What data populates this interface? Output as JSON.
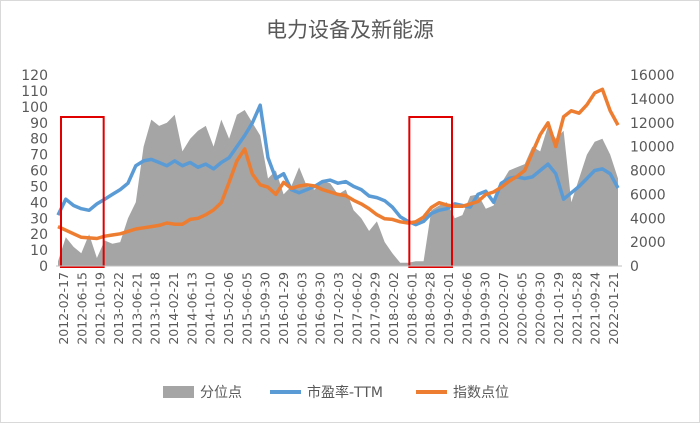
{
  "chart_data": {
    "type": "area",
    "title": "电力设备及新能源",
    "x_ticks": [
      "2012-02-17",
      "2012-06-15",
      "2012-10-19",
      "2013-02-22",
      "2013-06-21",
      "2013-10-18",
      "2014-02-21",
      "2014-06-13",
      "2014-10-10",
      "2015-02-06",
      "2015-06-05",
      "2015-09-30",
      "2016-01-29",
      "2016-06-03",
      "2016-09-30",
      "2017-02-03",
      "2017-06-02",
      "2017-09-29",
      "2018-02-02",
      "2018-06-01",
      "2018-09-28",
      "2019-02-01",
      "2019-06-06",
      "2019-09-30",
      "2020-02-07",
      "2020-06-05",
      "2020-09-30",
      "2021-01-29",
      "2021-05-28",
      "2021-09-24",
      "2022-01-21"
    ],
    "ylim_left": [
      0,
      120
    ],
    "yticks_left": [
      0,
      10,
      20,
      30,
      40,
      50,
      60,
      70,
      80,
      90,
      100,
      110,
      120
    ],
    "ylim_right": [
      0,
      16000
    ],
    "yticks_right": [
      0,
      2000,
      4000,
      6000,
      8000,
      10000,
      12000,
      14000,
      16000
    ],
    "series": [
      {
        "name": "分位点",
        "axis": "left",
        "color": "#a5a5a5",
        "values": [
          3,
          18,
          12,
          8,
          20,
          5,
          16,
          14,
          15,
          30,
          40,
          75,
          92,
          88,
          90,
          95,
          72,
          80,
          85,
          88,
          75,
          92,
          80,
          95,
          98,
          90,
          82,
          55,
          60,
          45,
          50,
          62,
          50,
          48,
          53,
          52,
          45,
          48,
          35,
          30,
          22,
          28,
          15,
          8,
          2,
          2,
          3,
          3,
          35,
          38,
          40,
          30,
          32,
          44,
          45,
          36,
          38,
          52,
          60,
          62,
          64,
          75,
          72,
          88,
          80,
          85,
          40,
          55,
          70,
          78,
          80,
          70,
          55
        ]
      },
      {
        "name": "市盈率-TTM",
        "axis": "left",
        "color": "#5b9bd5",
        "values": [
          32,
          42,
          38,
          36,
          35,
          39,
          42,
          45,
          48,
          52,
          63,
          66,
          67,
          65,
          63,
          66,
          63,
          65,
          62,
          64,
          61,
          65,
          68,
          75,
          82,
          90,
          101,
          68,
          55,
          58,
          48,
          46,
          48,
          50,
          53,
          54,
          52,
          53,
          50,
          48,
          44,
          43,
          41,
          37,
          31,
          28,
          26,
          28,
          33,
          35,
          36,
          39,
          38,
          37,
          45,
          47,
          40,
          52,
          55,
          56,
          55,
          56,
          60,
          64,
          58,
          42,
          46,
          50,
          55,
          60,
          61,
          58,
          49
        ]
      },
      {
        "name": "指数点位",
        "axis": "right",
        "color": "#ed7d31",
        "values": [
          3300,
          3000,
          2700,
          2400,
          2350,
          2300,
          2500,
          2600,
          2700,
          2900,
          3100,
          3200,
          3300,
          3400,
          3600,
          3500,
          3500,
          3900,
          4000,
          4300,
          4700,
          5300,
          7000,
          8800,
          9800,
          7700,
          6800,
          6600,
          6000,
          7000,
          6500,
          6700,
          6800,
          6700,
          6400,
          6200,
          6000,
          5900,
          5500,
          5200,
          4800,
          4300,
          3950,
          3900,
          3700,
          3600,
          3700,
          4100,
          4900,
          5300,
          5100,
          5000,
          5000,
          5200,
          5400,
          6000,
          6200,
          6600,
          7100,
          7500,
          8000,
          9500,
          11000,
          12000,
          10000,
          12500,
          13000,
          12800,
          13500,
          14500,
          14800,
          13000,
          11800
        ]
      }
    ],
    "highlight_boxes": [
      [
        "2012-02-17",
        "2012-10-19"
      ],
      [
        "2018-06-01",
        "2019-02-01"
      ]
    ],
    "legend": [
      "分位点",
      "市盈率-TTM",
      "指数点位"
    ],
    "legend_position": "bottom",
    "grid": false
  }
}
